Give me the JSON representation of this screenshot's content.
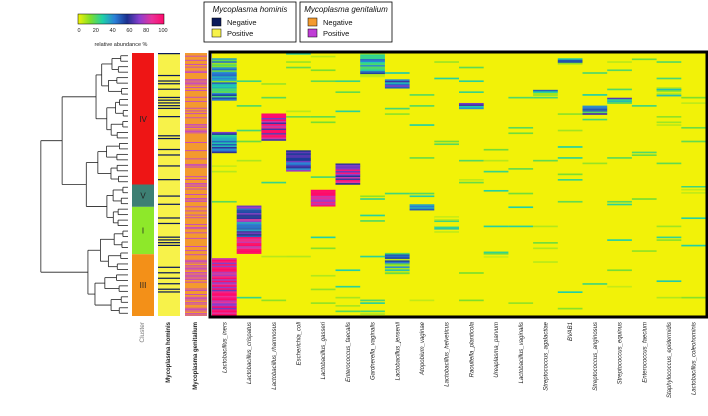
{
  "colors": {
    "ramp": [
      "#f2f208",
      "#7ddf2b",
      "#1fd0a8",
      "#2b7fd8",
      "#1b2f8e",
      "#8a3fcf",
      "#e8339b",
      "#ff0a6a"
    ],
    "cluster_IV": "#ee1515",
    "cluster_V": "#3d7f73",
    "cluster_I": "#8ee82a",
    "cluster_III": "#f39018",
    "hominis_negative": "#0a1a5a",
    "hominis_positive": "#f7f24a",
    "genitalium_negative": "#f39a2e",
    "genitalium_positive": "#c03ed6",
    "heatmap_background": "#f2f208",
    "frame": "#000000"
  },
  "colorbar": {
    "ticks": [
      "0",
      "20",
      "40",
      "60",
      "80",
      "100"
    ],
    "label": "relative abundance %"
  },
  "legend_hominis": {
    "title": "Mycoplasma hominis",
    "items": [
      "Negative",
      "Positive"
    ]
  },
  "legend_genitalium": {
    "title": "Mycoplasma genitalium",
    "items": [
      "Negative",
      "Positive"
    ]
  },
  "column_labels": {
    "cluster": "Cluster",
    "hominis": "Mycoplasma hominis",
    "genitalium": "Mycoplasma genitalium"
  },
  "clusters": [
    {
      "label": "IV",
      "color_key": "cluster_IV",
      "start": 0,
      "end": 0.5
    },
    {
      "label": "V",
      "color_key": "cluster_V",
      "start": 0.5,
      "end": 0.585
    },
    {
      "label": "I",
      "color_key": "cluster_I",
      "start": 0.585,
      "end": 0.765
    },
    {
      "label": "III",
      "color_key": "cluster_III",
      "start": 0.765,
      "end": 1.0
    }
  ],
  "chart_data": {
    "type": "heatmap",
    "title": "",
    "value_label": "relative abundance %",
    "value_range": [
      0,
      100
    ],
    "cluster_bands_rows_fraction": "IV 0–0.50, V 0.50–0.585, I 0.585–0.765, III 0.765–1.00",
    "taxa": [
      "Lactobacillus_iners",
      "Lactobacillus_crispatus",
      "Lactobacillus_rhamnosus",
      "Escherichia_coli",
      "Lactobacillus_gasseri",
      "Enterococcus_faecalis",
      "Gardnerella_vaginalis",
      "Lactobacillus_jensenii",
      "Atopobium_vaginae",
      "Lactobacillus_helveticus",
      "Raoultella_planticola",
      "Ureaplasma_parvum",
      "Lactobacillus_vaginalis",
      "Streptococcus_agalactiae",
      "BVAB1",
      "Streptococcus_anginosus",
      "Streptococcus_equinus",
      "Enterococcus_faecium",
      "Staphylococcus_epidermidis",
      "Lactobacillus_coleohominis"
    ],
    "blocks": [
      {
        "taxon": "Lactobacillus_iners",
        "rows": [
          0.02,
          0.18
        ],
        "value": 35
      },
      {
        "taxon": "Lactobacillus_iners",
        "rows": [
          0.3,
          0.38
        ],
        "value": 45
      },
      {
        "taxon": "Lactobacillus_iners",
        "rows": [
          0.78,
          1.0
        ],
        "value": 92
      },
      {
        "taxon": "Lactobacillus_crispatus",
        "rows": [
          0.58,
          0.7
        ],
        "value": 60
      },
      {
        "taxon": "Lactobacillus_crispatus",
        "rows": [
          0.7,
          0.76
        ],
        "value": 95
      },
      {
        "taxon": "Lactobacillus_rhamnosus",
        "rows": [
          0.23,
          0.33
        ],
        "value": 85
      },
      {
        "taxon": "Escherichia_coli",
        "rows": [
          0.37,
          0.45
        ],
        "value": 55
      },
      {
        "taxon": "Lactobacillus_gasseri",
        "rows": [
          0.52,
          0.58
        ],
        "value": 85
      },
      {
        "taxon": "Enterococcus_faecalis",
        "rows": [
          0.42,
          0.5
        ],
        "value": 75
      },
      {
        "taxon": "Gardnerella_vaginalis",
        "rows": [
          0.0,
          0.09
        ],
        "value": 30
      },
      {
        "taxon": "Lactobacillus_jensenii",
        "rows": [
          0.1,
          0.13
        ],
        "value": 50
      },
      {
        "taxon": "Lactobacillus_jensenii",
        "rows": [
          0.76,
          0.84
        ],
        "value": 30
      },
      {
        "taxon": "Atopobium_vaginae",
        "rows": [
          0.575,
          0.595
        ],
        "value": 40
      },
      {
        "taxon": "Lactobacillus_helveticus",
        "rows": [
          0.62,
          0.68
        ],
        "value": 12
      },
      {
        "taxon": "Raoultella_planticola",
        "rows": [
          0.19,
          0.21
        ],
        "value": 45
      },
      {
        "taxon": "Ureaplasma_parvum",
        "rows": [
          0.755,
          0.775
        ],
        "value": 20
      },
      {
        "taxon": "Streptococcus_agalactiae",
        "rows": [
          0.14,
          0.16
        ],
        "value": 25
      },
      {
        "taxon": "BVAB1",
        "rows": [
          0.02,
          0.04
        ],
        "value": 32
      },
      {
        "taxon": "Streptococcus_anginosus",
        "rows": [
          0.2,
          0.23
        ],
        "value": 40
      },
      {
        "taxon": "Streptococcus_equinus",
        "rows": [
          0.17,
          0.19
        ],
        "value": 45
      },
      {
        "taxon": "Staphylococcus_epidermidis",
        "rows": [
          0.13,
          0.16
        ],
        "value": 20
      },
      {
        "taxon": "Lactobacillus_coleohominis",
        "rows": [
          0.5,
          0.53
        ],
        "value": 12
      }
    ]
  }
}
